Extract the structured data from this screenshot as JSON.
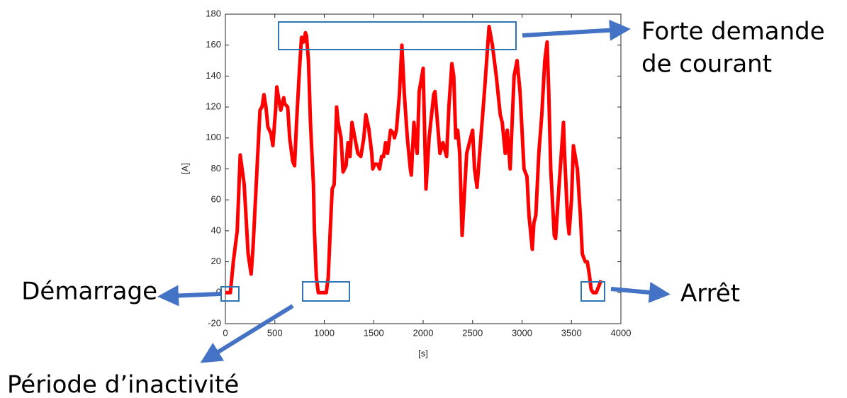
{
  "chart_data": {
    "type": "line",
    "xlabel": "[s]",
    "ylabel": "[A]",
    "xlim": [
      0,
      4000
    ],
    "xticks": [
      0,
      500,
      1000,
      1500,
      2000,
      2500,
      3000,
      3500,
      4000
    ],
    "ylim": [
      -20,
      180
    ],
    "yticks": [
      -20,
      0,
      20,
      40,
      60,
      80,
      100,
      120,
      140,
      160,
      180
    ],
    "annotations": [
      "Forte demande",
      "de courant",
      "Démarrage",
      "Période d’inactivité",
      "Arrêt"
    ],
    "series": [
      {
        "color": "#ff0000",
        "x": [
          0,
          50,
          80,
          120,
          150,
          190,
          230,
          260,
          280,
          320,
          350,
          370,
          390,
          410,
          430,
          460,
          480,
          510,
          520,
          540,
          560,
          590,
          600,
          630,
          650,
          680,
          700,
          720,
          750,
          770,
          790,
          810,
          820,
          840,
          860,
          890,
          900,
          920,
          940,
          980,
          1020,
          1040,
          1060,
          1080,
          1100,
          1125,
          1140,
          1170,
          1190,
          1220,
          1240,
          1260,
          1280,
          1310,
          1340,
          1370,
          1400,
          1420,
          1450,
          1480,
          1490,
          1510,
          1540,
          1560,
          1580,
          1600,
          1620,
          1640,
          1670,
          1700,
          1710,
          1730,
          1760,
          1785,
          1810,
          1840,
          1870,
          1880,
          1907,
          1920,
          1940,
          1960,
          2000,
          2029,
          2060,
          2107,
          2120,
          2170,
          2200,
          2237,
          2260,
          2290,
          2310,
          2330,
          2350,
          2370,
          2394,
          2440,
          2500,
          2520,
          2545,
          2620,
          2667,
          2700,
          2740,
          2780,
          2800,
          2830,
          2850,
          2880,
          2920,
          2950,
          2980,
          3020,
          3050,
          3070,
          3104,
          3120,
          3140,
          3170,
          3200,
          3230,
          3254,
          3270,
          3290,
          3326,
          3340,
          3370,
          3419,
          3430,
          3460,
          3476,
          3500,
          3520,
          3560,
          3590,
          3610,
          3640,
          3660,
          3680,
          3700,
          3720,
          3750,
          3800
        ],
        "values": [
          0,
          0,
          20,
          40,
          89,
          70,
          25,
          12,
          30,
          80,
          118,
          120,
          128,
          120,
          107,
          103,
          95,
          120,
          133,
          125,
          118,
          126,
          122,
          120,
          100,
          85,
          82,
          110,
          145,
          165,
          162,
          168,
          166,
          150,
          110,
          70,
          40,
          10,
          0,
          0,
          0,
          10,
          40,
          67,
          70,
          120,
          110,
          100,
          78,
          82,
          97,
          88,
          110,
          100,
          90,
          88,
          100,
          115,
          106,
          90,
          80,
          83,
          83,
          80,
          88,
          88,
          97,
          90,
          105,
          103,
          100,
          105,
          128,
          160,
          128,
          100,
          80,
          76,
          110,
          100,
          90,
          130,
          145,
          67,
          100,
          128,
          130,
          90,
          97,
          88,
          120,
          148,
          140,
          100,
          105,
          90,
          37,
          90,
          105,
          80,
          68,
          130,
          172,
          160,
          140,
          115,
          110,
          90,
          105,
          80,
          140,
          150,
          130,
          80,
          75,
          50,
          28,
          45,
          50,
          90,
          115,
          150,
          162,
          130,
          80,
          37,
          35,
          65,
          110,
          90,
          48,
          38,
          60,
          95,
          80,
          50,
          25,
          20,
          20,
          12,
          2,
          0,
          0,
          8
        ]
      }
    ]
  }
}
